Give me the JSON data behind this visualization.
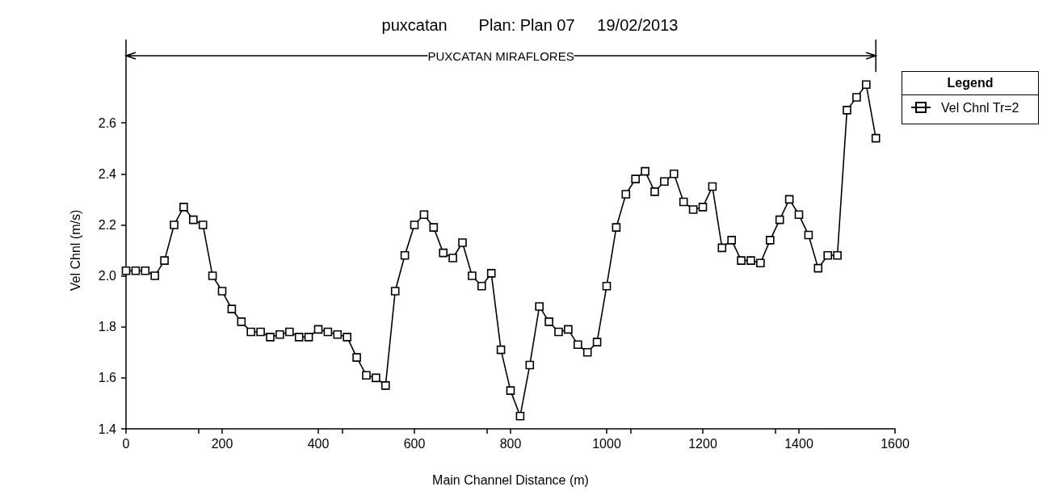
{
  "chart_data": {
    "type": "line",
    "title": "puxcatan       Plan: Plan 07     19/02/2013",
    "xlabel": "Main Channel Distance (m)",
    "ylabel": "Vel Chnl (m/s)",
    "legend_title": "Legend",
    "legend": "top right",
    "marker": "square",
    "line_style": "solid",
    "grid": false,
    "annotations": [
      "PUXCATAN MIRAFLORES"
    ],
    "xlim": [
      0,
      1600
    ],
    "xticks": [
      0,
      200,
      400,
      600,
      800,
      1000,
      1200,
      1400,
      1600
    ],
    "ylim": [
      1.4,
      2.8
    ],
    "yticks": [
      1.4,
      1.6,
      1.8,
      {
        "value": 2,
        "label": "2.0"
      },
      2.2,
      2.4,
      2.6
    ],
    "x": [
      0,
      20,
      40,
      60,
      80,
      100,
      120,
      140,
      160,
      180,
      200,
      220,
      240,
      260,
      280,
      300,
      320,
      340,
      360,
      380,
      400,
      420,
      440,
      460,
      480,
      500,
      520,
      540,
      560,
      580,
      600,
      620,
      640,
      660,
      680,
      700,
      720,
      740,
      760,
      780,
      800,
      820,
      840,
      860,
      880,
      900,
      920,
      940,
      960,
      980,
      1000,
      1020,
      1040,
      1060,
      1080,
      1100,
      1120,
      1140,
      1160,
      1180,
      1200,
      1220,
      1240,
      1260,
      1280,
      1300,
      1320,
      1340,
      1360,
      1380,
      1400,
      1420,
      1440,
      1460,
      1480,
      1500,
      1520,
      1540,
      1560
    ],
    "series": [
      {
        "name": "Vel Chnl Tr=2",
        "color": "#000000",
        "values": [
          2.02,
          2.02,
          2.02,
          2.0,
          2.06,
          2.2,
          2.27,
          2.22,
          2.2,
          2.0,
          1.94,
          1.87,
          1.82,
          1.78,
          1.78,
          1.76,
          1.77,
          1.78,
          1.76,
          1.76,
          1.79,
          1.78,
          1.77,
          1.76,
          1.68,
          1.61,
          1.6,
          1.57,
          1.94,
          2.08,
          2.2,
          2.24,
          2.19,
          2.09,
          2.07,
          2.13,
          2.0,
          1.96,
          2.01,
          1.71,
          1.55,
          1.45,
          1.65,
          1.88,
          1.82,
          1.78,
          1.79,
          1.73,
          1.7,
          1.74,
          1.96,
          2.19,
          2.32,
          2.38,
          2.41,
          2.33,
          2.37,
          2.4,
          2.29,
          2.26,
          2.27,
          2.35,
          2.11,
          2.14,
          2.06,
          2.06,
          2.05,
          2.14,
          2.22,
          2.3,
          2.24,
          2.16,
          2.03,
          2.08,
          2.08,
          2.65,
          2.7,
          2.75,
          2.54
        ]
      }
    ]
  }
}
